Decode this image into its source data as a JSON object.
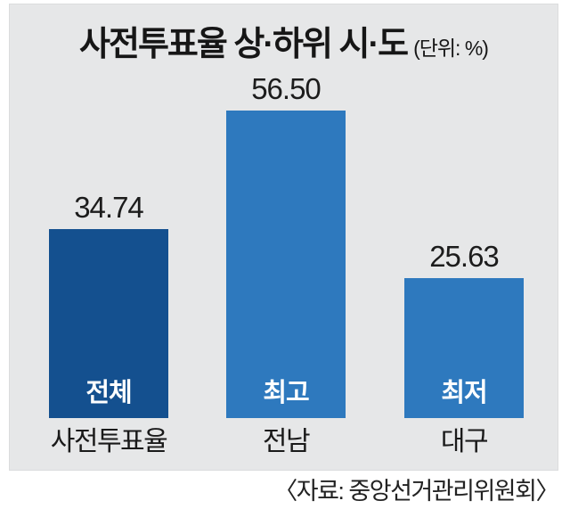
{
  "title": {
    "main": "사전투표율 상·하위 시·도",
    "unit": "(단위: %)"
  },
  "source": "〈자료: 중앙선거관리위원회〉",
  "colors": {
    "panel_bg": "#e6e7e8",
    "bar_primary_dark": "#14508f",
    "bar_primary_light": "#2e79be",
    "bar_tag_text": "#ffffff",
    "text": "#1c1c1c"
  },
  "chart_data": {
    "type": "bar",
    "title": "사전투표율 상·하위 시·도",
    "unit_label": "(단위: %)",
    "categories": [
      "사전투표율",
      "전남",
      "대구"
    ],
    "values": [
      34.74,
      56.5,
      25.63
    ],
    "value_labels": [
      "34.74",
      "56.50",
      "25.63"
    ],
    "bar_tags": [
      "전체",
      "최고",
      "최저"
    ],
    "bar_tag_names": [
      "overall",
      "highest",
      "lowest"
    ],
    "bar_colors": [
      "#14508f",
      "#2e79be",
      "#2e79be"
    ],
    "ylim": [
      0,
      56.5
    ],
    "grid": false,
    "legend": "none",
    "source": "〈자료: 중앙선거관리위원회〉"
  }
}
